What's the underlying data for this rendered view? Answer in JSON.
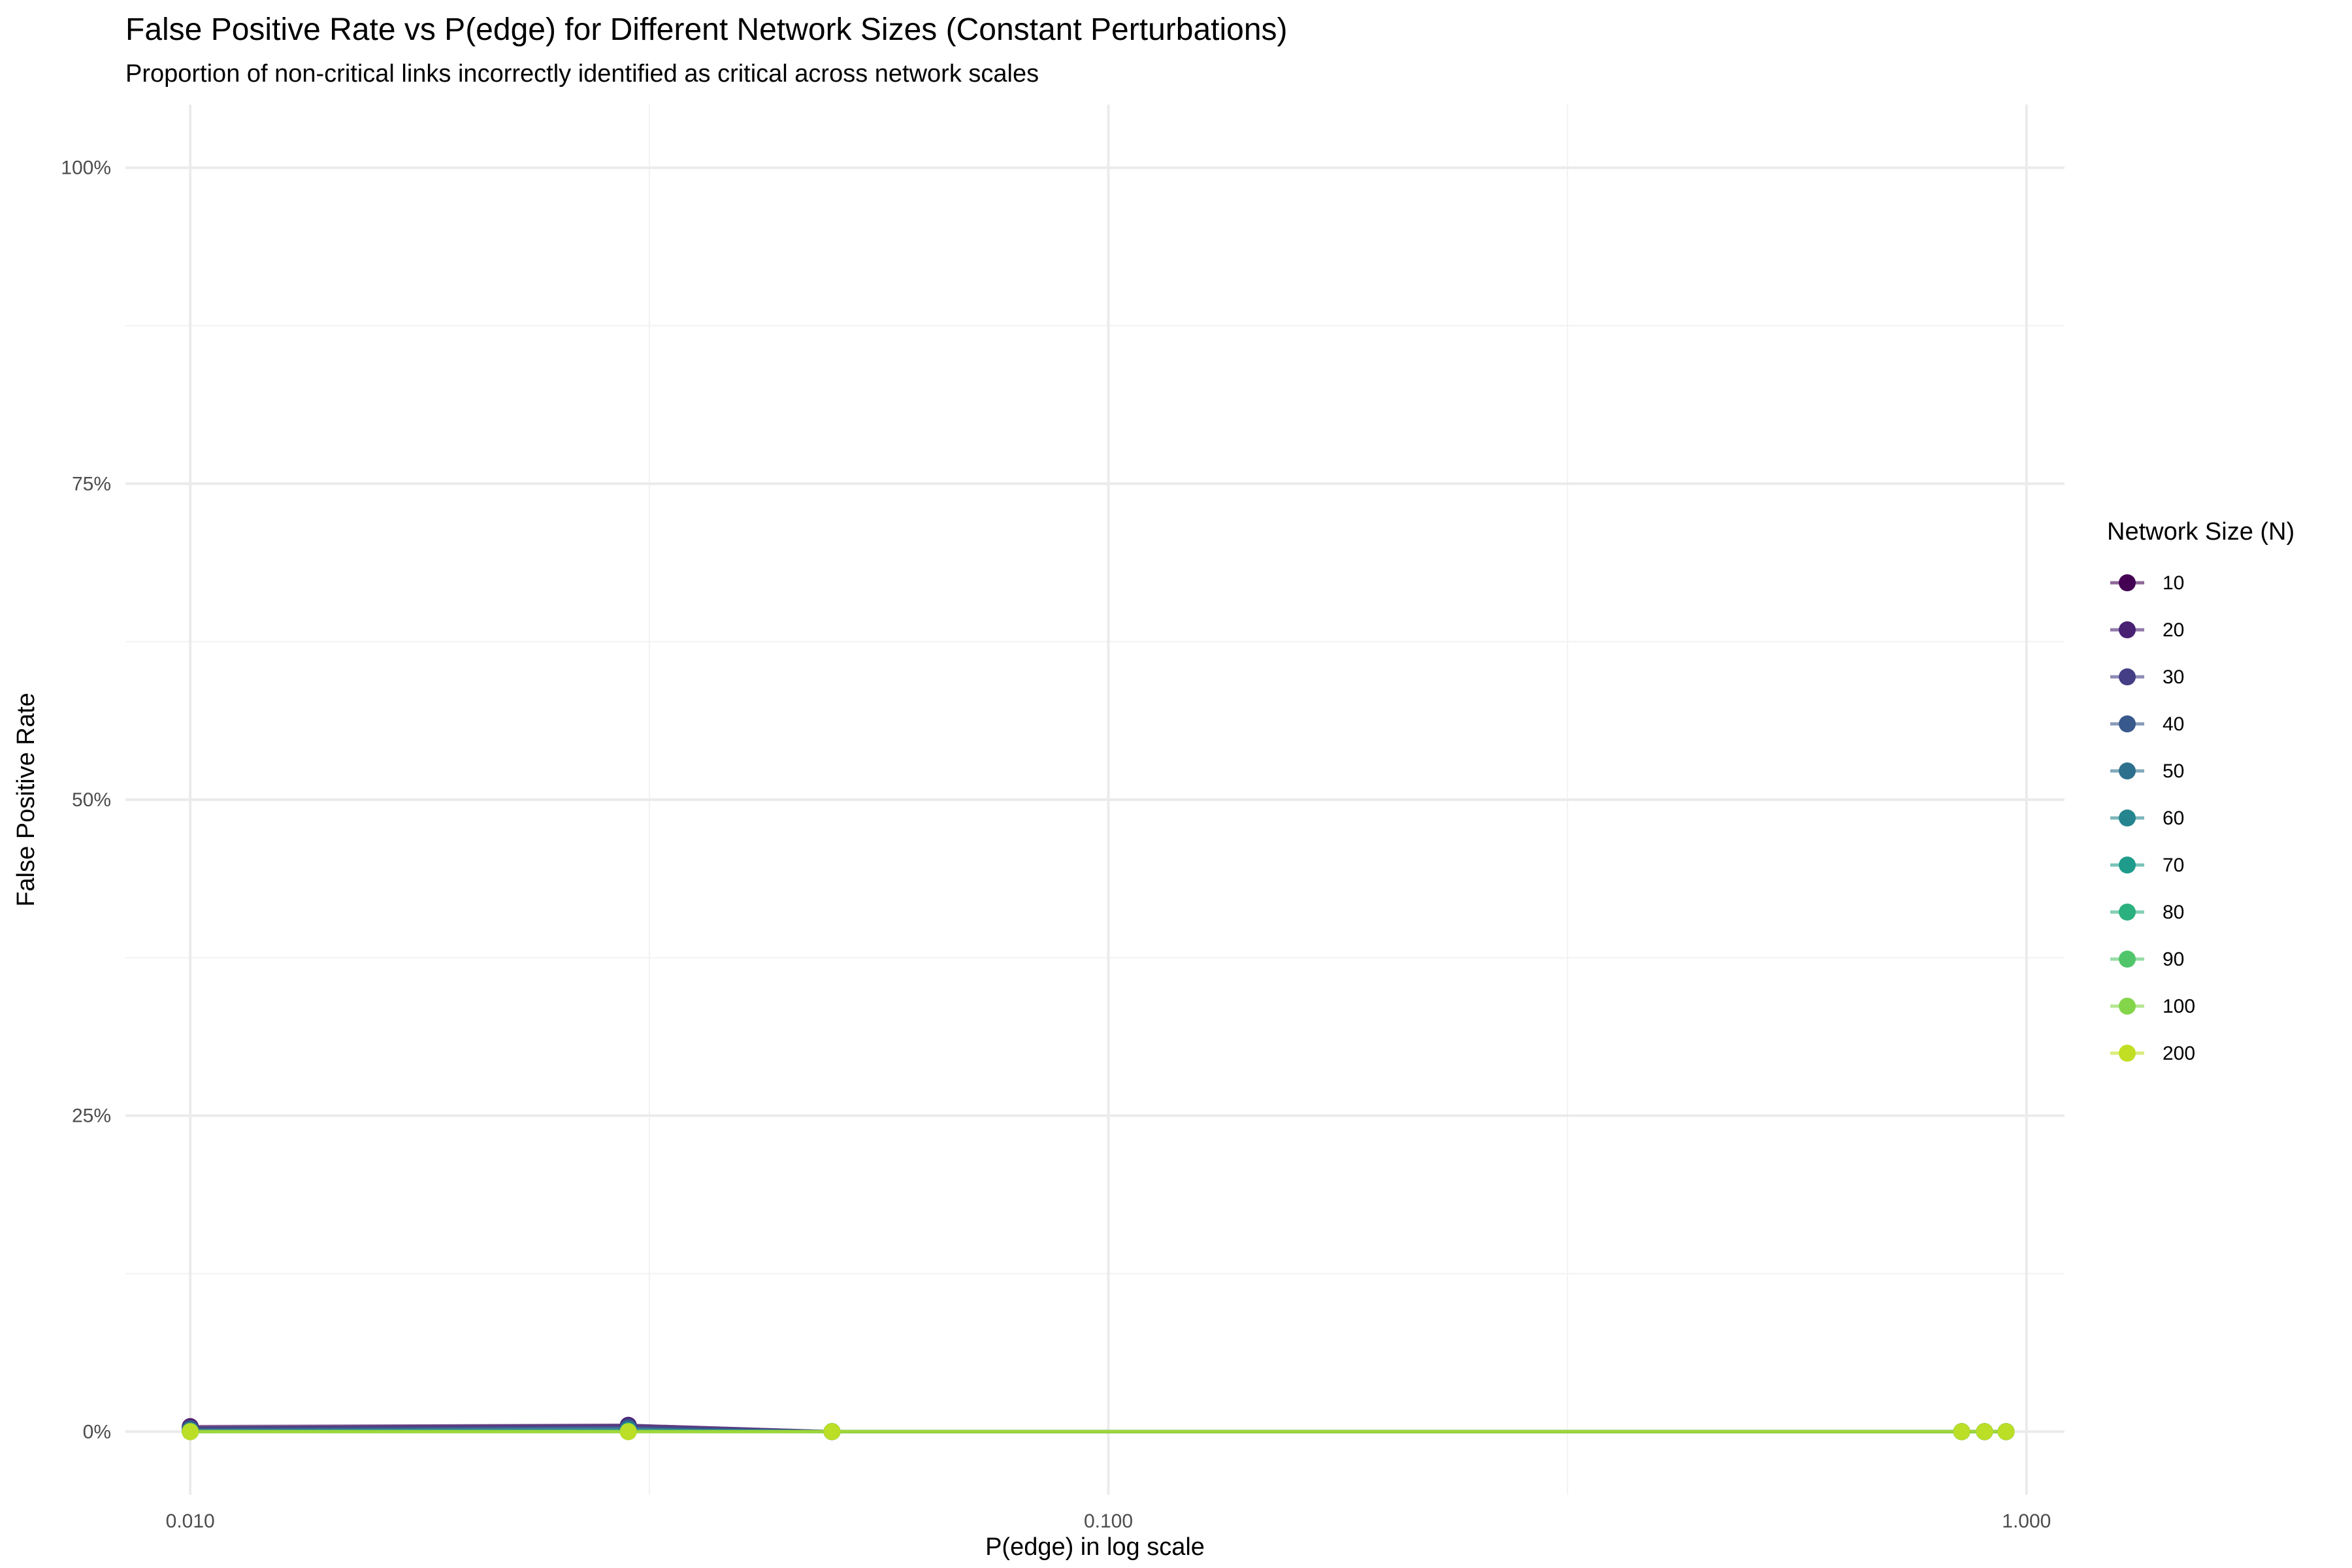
{
  "chart_data": {
    "type": "line",
    "title": "False Positive Rate vs P(edge) for Different Network Sizes (Constant Perturbations)",
    "subtitle": "Proportion of non-critical links incorrectly identified as critical across network scales",
    "xlabel": "P(edge) in log scale",
    "ylabel": "False Positive Rate",
    "x_scale": "log10",
    "xlim": [
      0.0085,
      1.1
    ],
    "ylim": [
      -0.05,
      1.05
    ],
    "x_ticks": [
      0.01,
      0.1,
      1.0
    ],
    "x_tick_labels": [
      "0.010",
      "0.100",
      "1.000"
    ],
    "y_ticks": [
      0,
      0.25,
      0.5,
      0.75,
      1.0
    ],
    "y_tick_labels": [
      "0%",
      "25%",
      "50%",
      "75%",
      "100%"
    ],
    "grid": true,
    "legend": {
      "title": "Network Size (N)",
      "position": "right"
    },
    "series": [
      {
        "name": "10",
        "color": "#440154",
        "x": [
          0.01,
          0.03,
          0.05,
          0.85,
          0.9,
          0.95
        ],
        "y": [
          0.004,
          0.005,
          0,
          0,
          0,
          0
        ]
      },
      {
        "name": "20",
        "color": "#482173",
        "x": [
          0.01,
          0.03,
          0.05,
          0.85,
          0.9,
          0.95
        ],
        "y": [
          0.003,
          0.005,
          0,
          0,
          0,
          0
        ]
      },
      {
        "name": "30",
        "color": "#433E85",
        "x": [
          0.01,
          0.03,
          0.05,
          0.85,
          0.9,
          0.95
        ],
        "y": [
          0.003,
          0.004,
          0,
          0,
          0,
          0
        ]
      },
      {
        "name": "40",
        "color": "#38598C",
        "x": [
          0.01,
          0.03,
          0.05,
          0.85,
          0.9,
          0.95
        ],
        "y": [
          0.002,
          0.003,
          0,
          0,
          0,
          0
        ]
      },
      {
        "name": "50",
        "color": "#2D708E",
        "x": [
          0.01,
          0.03,
          0.05,
          0.85,
          0.9,
          0.95
        ],
        "y": [
          0.001,
          0.002,
          0,
          0,
          0,
          0
        ]
      },
      {
        "name": "60",
        "color": "#25858E",
        "x": [
          0.01,
          0.03,
          0.05,
          0.85,
          0.9,
          0.95
        ],
        "y": [
          0.001,
          0.001,
          0,
          0,
          0,
          0
        ]
      },
      {
        "name": "70",
        "color": "#1E9B8A",
        "x": [
          0.01,
          0.03,
          0.05,
          0.85,
          0.9,
          0.95
        ],
        "y": [
          0,
          0.001,
          0,
          0,
          0,
          0
        ]
      },
      {
        "name": "80",
        "color": "#2BB07F",
        "x": [
          0.01,
          0.03,
          0.05,
          0.85,
          0.9,
          0.95
        ],
        "y": [
          0,
          0,
          0,
          0,
          0,
          0
        ]
      },
      {
        "name": "90",
        "color": "#51C56A",
        "x": [
          0.01,
          0.03,
          0.05,
          0.85,
          0.9,
          0.95
        ],
        "y": [
          0,
          0,
          0,
          0,
          0,
          0
        ]
      },
      {
        "name": "100",
        "color": "#85D54A",
        "x": [
          0.01,
          0.03,
          0.05,
          0.85,
          0.9,
          0.95
        ],
        "y": [
          0,
          0,
          0,
          0,
          0,
          0
        ]
      },
      {
        "name": "200",
        "color": "#C2DF23",
        "x": [
          0.01,
          0.03,
          0.05,
          0.85,
          0.9,
          0.95
        ],
        "y": [
          0,
          0,
          0,
          0,
          0,
          0
        ]
      }
    ]
  }
}
